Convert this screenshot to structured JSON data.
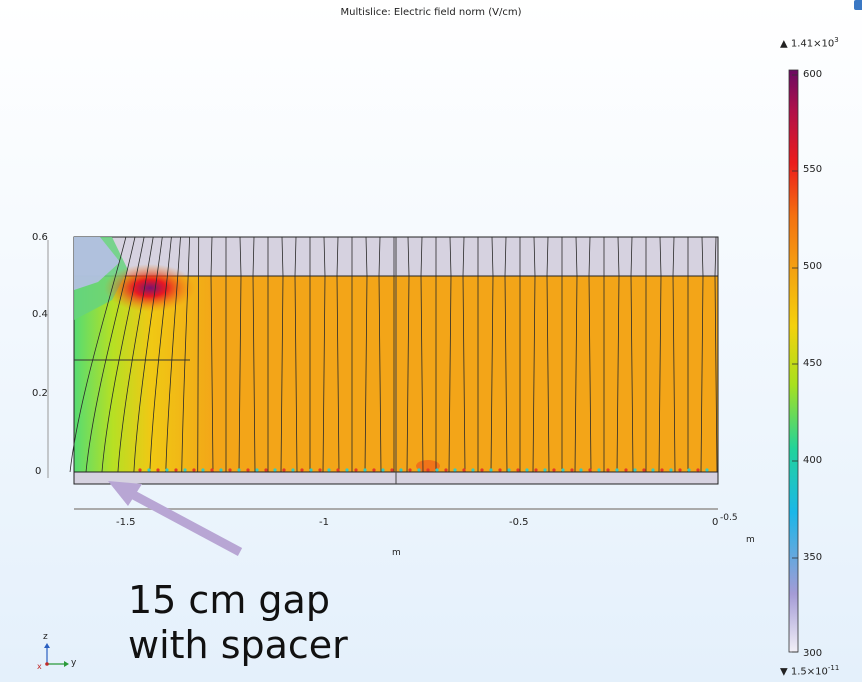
{
  "plot": {
    "title": "Multislice: Electric field norm (V/cm)",
    "y_ticks": [
      "0.6",
      "0.4",
      "0.2",
      "0"
    ],
    "x_ticks": [
      "-1.5",
      "-1",
      "-0.5",
      "0"
    ],
    "x_unit": "m",
    "right_unit": "m",
    "right_offset": "-0.5"
  },
  "colorbar": {
    "max_mant": "▲ 1.41×10",
    "max_exp": "3",
    "min_mant": "▼ 1.5×10",
    "min_exp": "-11",
    "ticks": [
      "600",
      "550",
      "500",
      "450",
      "400",
      "350",
      "300"
    ],
    "range": [
      300,
      600
    ]
  },
  "annotation": {
    "line1": "15 cm gap",
    "line2": "with spacer",
    "arrow_color": "#b8a6d4"
  },
  "axis_triad": {
    "z_label": "z",
    "y_label": "y",
    "x_label": "x"
  }
}
